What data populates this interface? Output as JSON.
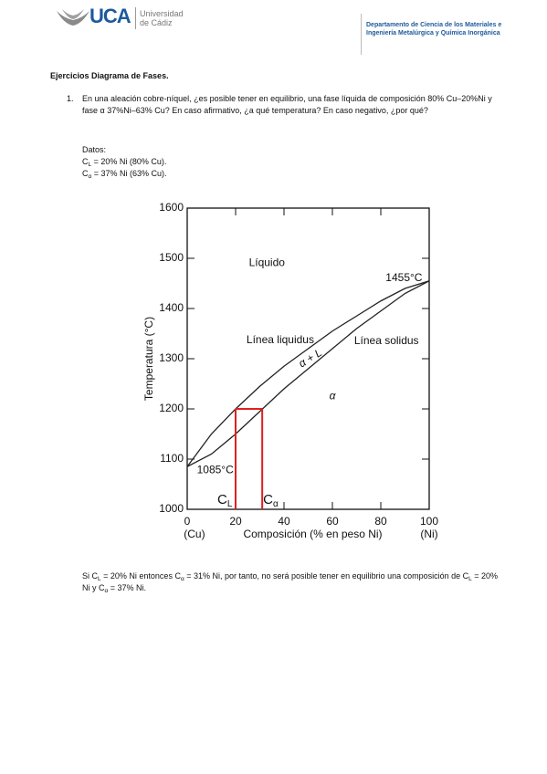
{
  "header": {
    "logo": "UCA",
    "university": [
      "Universidad",
      "de Cádiz"
    ],
    "department": [
      "Departamento de Ciencia de los Materiales e",
      "Ingeniería Metalúrgica y Química Inorgánica"
    ]
  },
  "title": "Ejercicios Diagrama de Fases.",
  "question": {
    "number": "1.",
    "text": "En una aleación cobre-níquel, ¿es posible tener en equilibrio, una fase líquida de composición 80% Cu–20%Ni y fase α 37%Ni–63% Cu? En caso afirmativo, ¿a qué temperatura? En caso negativo, ¿por qué?"
  },
  "datos": {
    "label": "Datos:",
    "lines": [
      [
        "C",
        "L",
        " = 20% Ni (80% Cu)."
      ],
      [
        "C",
        "α",
        " = 37% Ni (63% Cu)."
      ]
    ]
  },
  "chart_data": {
    "type": "line",
    "xlabel": "Composición (% en peso Ni)",
    "ylabel": "Temperatura (°C)",
    "xlim": [
      0,
      100
    ],
    "ylim": [
      1000,
      1600
    ],
    "xticks": [
      0,
      20,
      40,
      60,
      80,
      100
    ],
    "yticks": [
      1000,
      1100,
      1200,
      1300,
      1400,
      1500,
      1600
    ],
    "x": [
      0,
      10,
      20,
      30,
      40,
      50,
      60,
      70,
      80,
      90,
      100
    ],
    "series": [
      {
        "name": "Línea liquidus",
        "color": "#222222",
        "values": [
          1085,
          1150,
          1200,
          1245,
          1285,
          1320,
          1355,
          1385,
          1415,
          1440,
          1455
        ]
      },
      {
        "name": "Línea solidus",
        "color": "#222222",
        "values": [
          1085,
          1110,
          1150,
          1195,
          1240,
          1280,
          1320,
          1360,
          1395,
          1430,
          1455
        ]
      }
    ],
    "marker": {
      "x": [
        20,
        31
      ],
      "y": 1200,
      "color": "#e02020",
      "labels": [
        [
          "C",
          "L"
        ],
        [
          "C",
          "α"
        ]
      ]
    },
    "annotations": [
      "Líquido",
      "1455°C",
      "α + L",
      "α",
      "1085°C",
      "(Cu)",
      "(Ni)"
    ]
  },
  "conclusion": [
    "Si C",
    "L",
    " = 20% Ni entonces C",
    "α",
    " = 31% Ni, por tanto, no será posible tener en equilibrio una composición de C",
    "L",
    " = 20% Ni y C",
    "α",
    " = 37% Ni."
  ]
}
